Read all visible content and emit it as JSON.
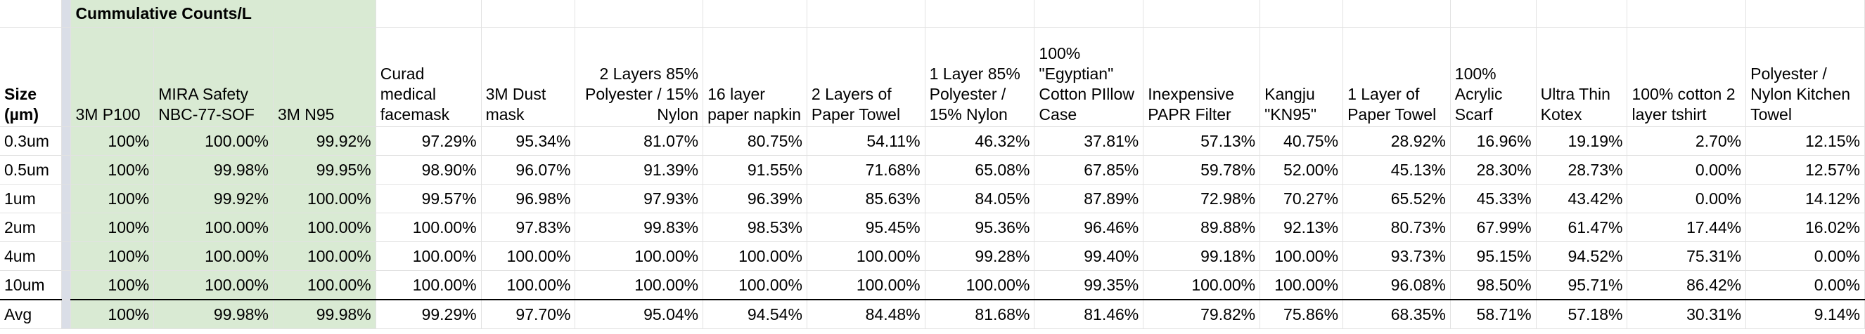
{
  "title": "Cummulative Counts/L",
  "size_header": "Size (µm)",
  "columns": [
    "3M P100",
    "MIRA Safety NBC-77-SOF",
    "3M N95",
    "Curad medical facemask",
    "3M Dust mask",
    "2 Layers 85% Polyester / 15% Nylon",
    "16 layer paper napkin",
    "2 Layers of Paper Towel",
    "1 Layer 85% Polyester / 15% Nylon",
    "100% \"Egyptian\" Cotton PIllow Case",
    "Inexpensive PAPR Filter",
    "Kangju \"KN95\"",
    "1 Layer of Paper Towel",
    "100% Acrylic Scarf",
    "Ultra Thin Kotex",
    "100% cotton 2 layer tshirt",
    "Polyester / Nylon Kitchen Towel"
  ],
  "rows": [
    {
      "label": "0.3um",
      "values": [
        "100%",
        "100.00%",
        "99.92%",
        "97.29%",
        "95.34%",
        "81.07%",
        "80.75%",
        "54.11%",
        "46.32%",
        "37.81%",
        "57.13%",
        "40.75%",
        "28.92%",
        "16.96%",
        "19.19%",
        "2.70%",
        "12.15%"
      ]
    },
    {
      "label": "0.5um",
      "values": [
        "100%",
        "99.98%",
        "99.95%",
        "98.90%",
        "96.07%",
        "91.39%",
        "91.55%",
        "71.68%",
        "65.08%",
        "67.85%",
        "59.78%",
        "52.00%",
        "45.13%",
        "28.30%",
        "28.73%",
        "0.00%",
        "12.57%"
      ]
    },
    {
      "label": "1um",
      "values": [
        "100%",
        "99.92%",
        "100.00%",
        "99.57%",
        "96.98%",
        "97.93%",
        "96.39%",
        "85.63%",
        "84.05%",
        "87.89%",
        "72.98%",
        "70.27%",
        "65.52%",
        "45.33%",
        "43.42%",
        "0.00%",
        "14.12%"
      ]
    },
    {
      "label": "2um",
      "values": [
        "100%",
        "100.00%",
        "100.00%",
        "100.00%",
        "97.83%",
        "99.83%",
        "98.53%",
        "95.45%",
        "95.36%",
        "96.46%",
        "89.88%",
        "92.13%",
        "80.73%",
        "67.99%",
        "61.47%",
        "17.44%",
        "16.02%"
      ]
    },
    {
      "label": "4um",
      "values": [
        "100%",
        "100.00%",
        "100.00%",
        "100.00%",
        "100.00%",
        "100.00%",
        "100.00%",
        "100.00%",
        "99.28%",
        "99.40%",
        "99.18%",
        "100.00%",
        "93.73%",
        "95.15%",
        "94.52%",
        "75.31%",
        "0.00%"
      ]
    },
    {
      "label": "10um",
      "values": [
        "100%",
        "100.00%",
        "100.00%",
        "100.00%",
        "100.00%",
        "100.00%",
        "100.00%",
        "100.00%",
        "100.00%",
        "99.35%",
        "100.00%",
        "100.00%",
        "96.08%",
        "98.50%",
        "95.71%",
        "86.42%",
        "0.00%"
      ]
    }
  ],
  "avg": {
    "label": "Avg",
    "values": [
      "100%",
      "99.98%",
      "99.98%",
      "99.29%",
      "97.70%",
      "95.04%",
      "94.54%",
      "84.48%",
      "81.68%",
      "81.46%",
      "79.82%",
      "75.86%",
      "68.35%",
      "58.71%",
      "57.18%",
      "30.31%",
      "9.14%"
    ]
  },
  "colors": {
    "highlight": "#d9ead3",
    "gutter": "#dadee7",
    "gridline": "#e2e2e2"
  }
}
